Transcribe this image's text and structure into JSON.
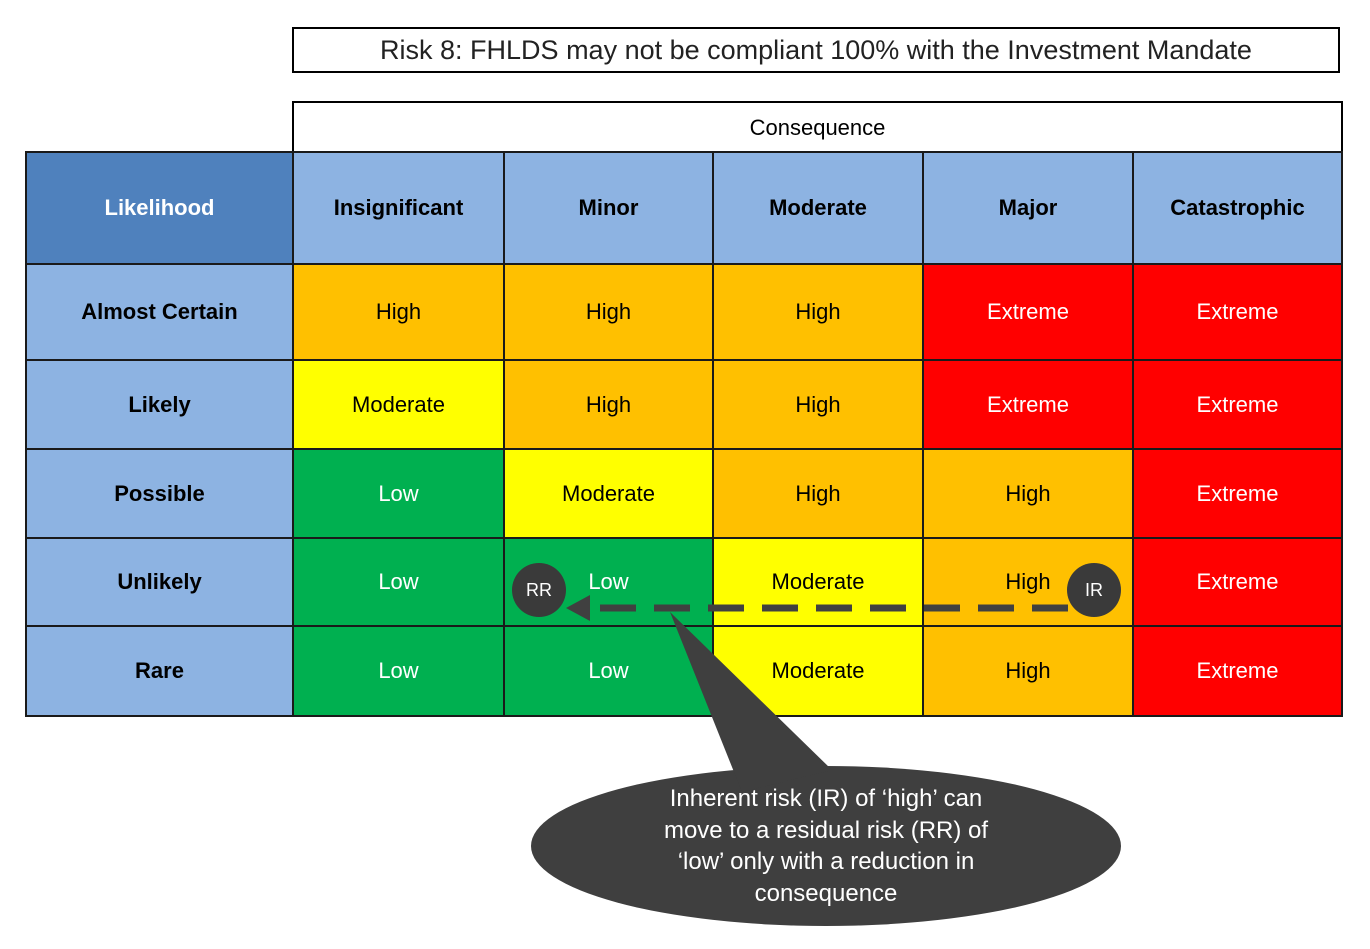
{
  "title": "Risk 8: FHLDS may not be compliant 100% with the Investment Mandate",
  "consequence_label": "Consequence",
  "likelihood_label": "Likelihood",
  "columns": [
    "Insignificant",
    "Minor",
    "Moderate",
    "Major",
    "Catastrophic"
  ],
  "rows": [
    {
      "label": "Almost Certain",
      "cells": [
        "High",
        "High",
        "High",
        "Extreme",
        "Extreme"
      ]
    },
    {
      "label": "Likely",
      "cells": [
        "Moderate",
        "High",
        "High",
        "Extreme",
        "Extreme"
      ]
    },
    {
      "label": "Possible",
      "cells": [
        "Low",
        "Moderate",
        "High",
        "High",
        "Extreme"
      ]
    },
    {
      "label": "Unlikely",
      "cells": [
        "Low",
        "Low",
        "Moderate",
        "High",
        "Extreme"
      ]
    },
    {
      "label": "Rare",
      "cells": [
        "Low",
        "Low",
        "Moderate",
        "High",
        "Extreme"
      ]
    }
  ],
  "level_colors": {
    "Low": "#00b050",
    "Moderate": "#ffff00",
    "High": "#ffc000",
    "Extreme": "#ff0000"
  },
  "markers": {
    "residual": "RR",
    "inherent": "IR"
  },
  "callout_lines": [
    "Inherent risk  (IR) of ‘high’ can",
    "move to a residual risk (RR) of",
    "‘low’ only with a reduction in",
    "consequence"
  ],
  "arrow_color": "#404040"
}
